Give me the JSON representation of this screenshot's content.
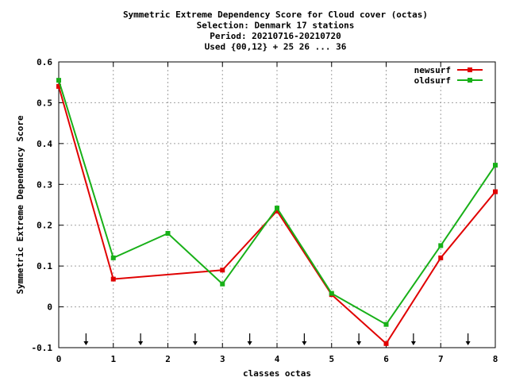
{
  "chart_data": {
    "type": "line",
    "title_lines": [
      "Symmetric Extreme Dependency Score  for Cloud cover (octas)",
      "Selection: Denmark     17 stations",
      "Period: 20210716-20210720",
      "Used {00,12} + 25 26 ... 36"
    ],
    "xlabel": "classes octas",
    "ylabel": "Symmetric Extreme Dependency Score",
    "xlim": [
      0,
      8
    ],
    "ylim": [
      -0.1,
      0.6
    ],
    "x_ticks": [
      "0",
      "1",
      "2",
      "3",
      "4",
      "5",
      "6",
      "7",
      "8"
    ],
    "y_ticks": [
      "-0.1",
      "0",
      "0.1",
      "0.2",
      "0.3",
      "0.4",
      "0.5",
      "0.6"
    ],
    "grid": true,
    "legend_position": "top-right",
    "threshold_arrows_x": [
      0.5,
      1.5,
      2.5,
      3.5,
      4.5,
      5.5,
      6.5,
      7.5
    ],
    "series": [
      {
        "name": "newsurf",
        "color": "#e00000",
        "x": [
          0,
          1,
          3,
          4,
          5,
          6,
          7,
          8
        ],
        "values": [
          0.54,
          0.068,
          0.09,
          0.235,
          0.03,
          -0.09,
          0.12,
          0.282
        ]
      },
      {
        "name": "oldsurf",
        "color": "#18b018",
        "x": [
          0,
          1,
          2,
          3,
          4,
          5,
          6,
          7,
          8
        ],
        "values": [
          0.555,
          0.12,
          0.18,
          0.056,
          0.242,
          0.033,
          -0.043,
          0.15,
          0.347
        ]
      }
    ]
  }
}
